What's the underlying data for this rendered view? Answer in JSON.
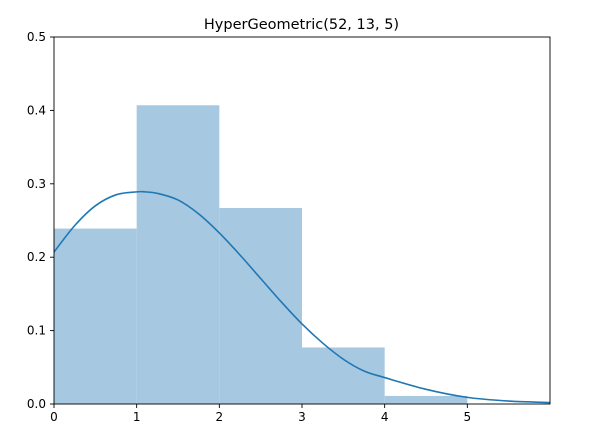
{
  "chart_data": {
    "type": "bar",
    "title": "HyperGeometric(52, 13, 5)",
    "xlabel": "",
    "ylabel": "",
    "xlim": [
      0,
      6
    ],
    "ylim": [
      0,
      0.5
    ],
    "grid": false,
    "x_ticks": [
      "0",
      "1",
      "2",
      "3",
      "4",
      "5"
    ],
    "y_ticks": [
      "0.0",
      "0.1",
      "0.2",
      "0.3",
      "0.4",
      "0.5"
    ],
    "bins": [
      {
        "start": 0,
        "end": 1,
        "value": 0.239
      },
      {
        "start": 1,
        "end": 2,
        "value": 0.407
      },
      {
        "start": 2,
        "end": 3,
        "value": 0.267
      },
      {
        "start": 3,
        "end": 4,
        "value": 0.077
      },
      {
        "start": 4,
        "end": 5,
        "value": 0.011
      }
    ],
    "curve": {
      "type": "line",
      "x": [
        0,
        0.25,
        0.5,
        0.75,
        1.0,
        1.1,
        1.25,
        1.5,
        1.75,
        2.0,
        2.25,
        2.5,
        2.75,
        3.0,
        3.25,
        3.5,
        3.75,
        4.0,
        4.5,
        5.0,
        5.5,
        6.0
      ],
      "y": [
        0.207,
        0.243,
        0.27,
        0.285,
        0.289,
        0.289,
        0.287,
        0.278,
        0.259,
        0.233,
        0.203,
        0.171,
        0.139,
        0.109,
        0.083,
        0.061,
        0.045,
        0.036,
        0.02,
        0.009,
        0.004,
        0.002
      ]
    },
    "colors": {
      "bar": "#a6c8e0",
      "line": "#1f77b4",
      "axis": "#000000"
    }
  }
}
